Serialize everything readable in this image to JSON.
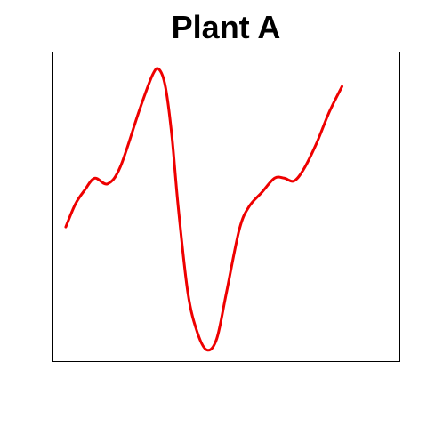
{
  "chart_data": {
    "type": "line",
    "title": "Plant A",
    "xlabel": "",
    "ylabel": "",
    "axes_visible": false,
    "grid": false,
    "legend": "none",
    "line_color": "#ee0000",
    "xlim": [
      -0.04,
      1.04
    ],
    "ylim": [
      -0.04,
      1.04
    ],
    "series": [
      {
        "points": [
          [
            0.0,
            0.43
          ],
          [
            0.03,
            0.51
          ],
          [
            0.06,
            0.56
          ],
          [
            0.09,
            0.6
          ],
          [
            0.13,
            0.58
          ],
          [
            0.17,
            0.64
          ],
          [
            0.23,
            0.84
          ],
          [
            0.27,
            0.96
          ],
          [
            0.29,
            0.98
          ],
          [
            0.31,
            0.92
          ],
          [
            0.33,
            0.75
          ],
          [
            0.35,
            0.5
          ],
          [
            0.38,
            0.2
          ],
          [
            0.41,
            0.06
          ],
          [
            0.44,
            0.0
          ],
          [
            0.47,
            0.04
          ],
          [
            0.5,
            0.2
          ],
          [
            0.54,
            0.42
          ],
          [
            0.57,
            0.5
          ],
          [
            0.61,
            0.55
          ],
          [
            0.65,
            0.6
          ],
          [
            0.68,
            0.6
          ],
          [
            0.71,
            0.59
          ],
          [
            0.74,
            0.63
          ],
          [
            0.78,
            0.72
          ],
          [
            0.82,
            0.83
          ],
          [
            0.86,
            0.92
          ]
        ]
      }
    ]
  }
}
